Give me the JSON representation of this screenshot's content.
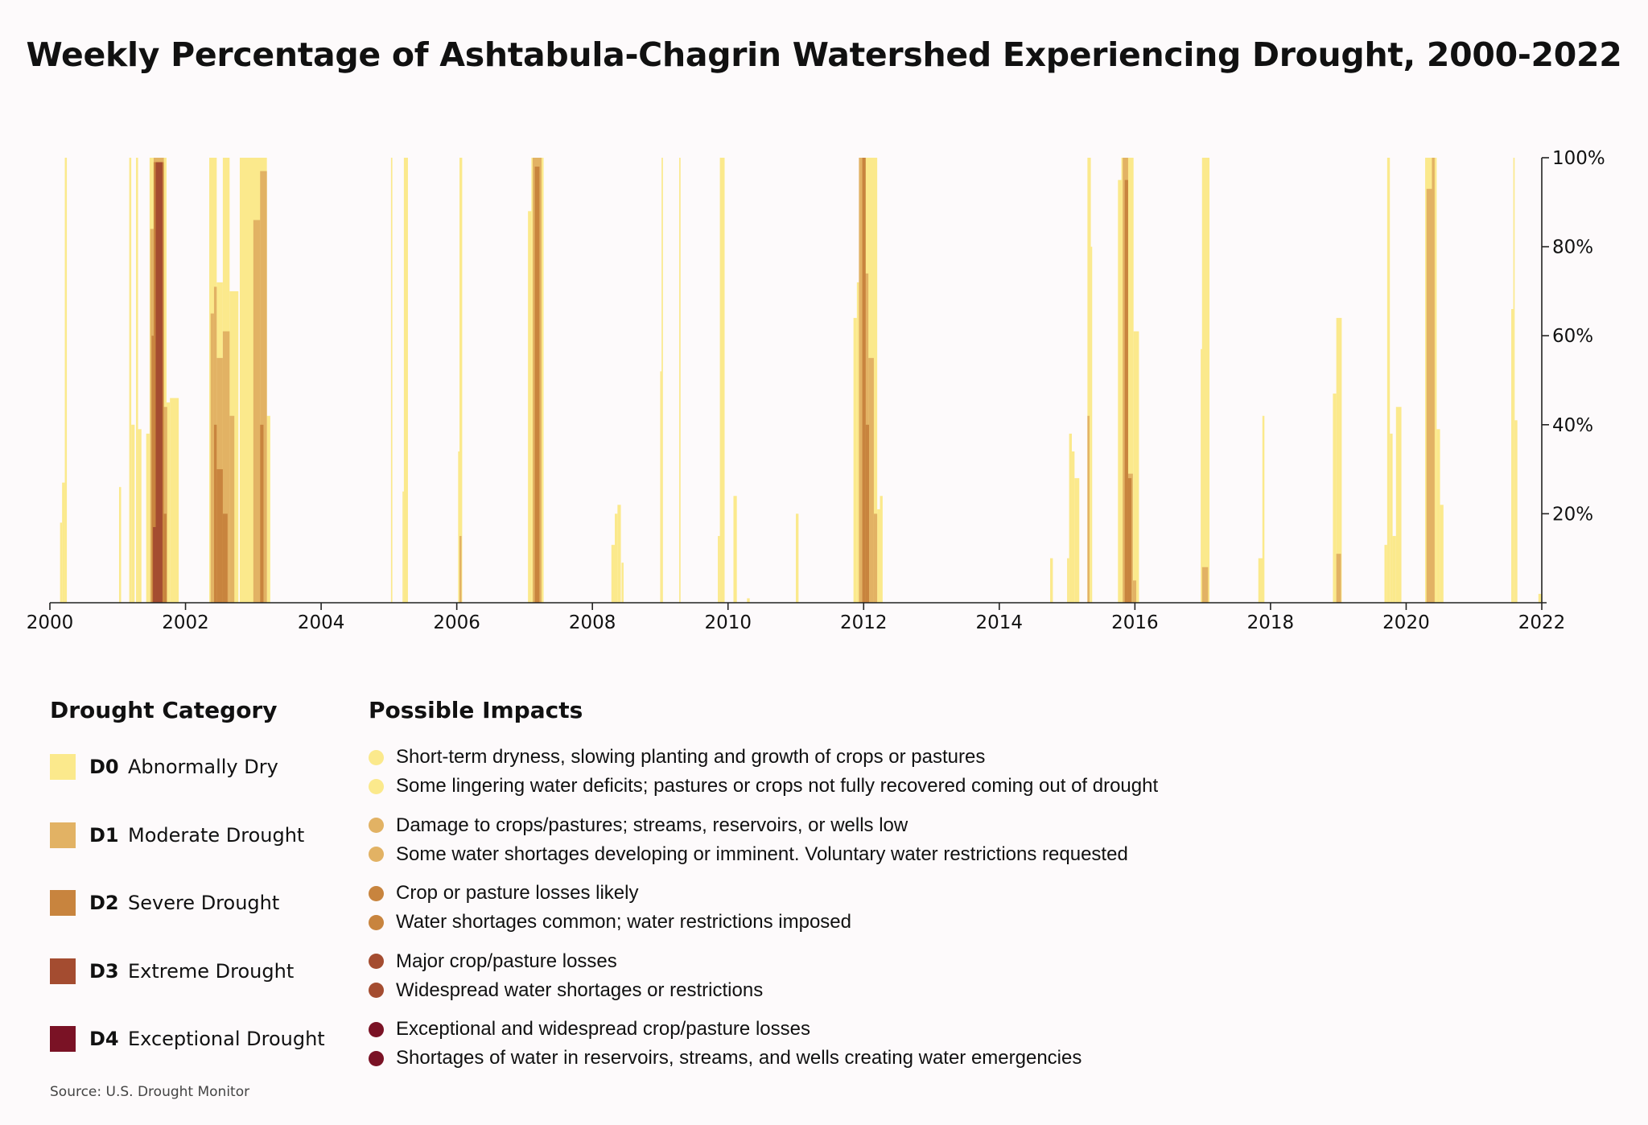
{
  "chart_data": {
    "type": "area",
    "title": "Weekly Percentage of Ashtabula-Chagrin Watershed Experiencing Drought, 2000-2022",
    "xlabel": "",
    "ylabel": "",
    "x_ticks": [
      "2000",
      "2002",
      "2004",
      "2006",
      "2008",
      "2010",
      "2012",
      "2014",
      "2016",
      "2018",
      "2020",
      "2022"
    ],
    "y_ticks": [
      "20%",
      "40%",
      "60%",
      "80%",
      "100%"
    ],
    "xlim": [
      2000,
      2022
    ],
    "ylim": [
      0,
      100
    ],
    "y_axis_position": "right",
    "grid": false,
    "colors": {
      "D0": "#fbe98c",
      "D1": "#e2b264",
      "D2": "#c8843e",
      "D3": "#a44c30",
      "D4": "#7a1225"
    },
    "series": [
      {
        "name": "D0",
        "segments": [
          [
            2000.15,
            2000.18,
            18
          ],
          [
            2000.18,
            2000.22,
            27
          ],
          [
            2000.22,
            2000.25,
            100
          ],
          [
            2001.02,
            2001.05,
            26
          ],
          [
            2001.17,
            2001.2,
            100
          ],
          [
            2001.2,
            2001.25,
            40
          ],
          [
            2001.27,
            2001.3,
            100
          ],
          [
            2001.3,
            2001.35,
            39
          ],
          [
            2001.42,
            2001.47,
            38
          ],
          [
            2001.47,
            2001.53,
            100
          ],
          [
            2001.53,
            2001.72,
            100
          ],
          [
            2001.72,
            2001.77,
            45
          ],
          [
            2001.77,
            2001.9,
            46
          ],
          [
            2002.35,
            2002.46,
            100
          ],
          [
            2002.46,
            2002.55,
            72
          ],
          [
            2002.55,
            2002.65,
            100
          ],
          [
            2002.65,
            2002.78,
            70
          ],
          [
            2002.8,
            2003.2,
            100
          ],
          [
            2003.2,
            2003.25,
            42
          ],
          [
            2005.03,
            2005.05,
            100
          ],
          [
            2005.2,
            2005.22,
            25
          ],
          [
            2005.22,
            2005.28,
            100
          ],
          [
            2006.02,
            2006.04,
            34
          ],
          [
            2006.04,
            2006.08,
            100
          ],
          [
            2007.05,
            2007.1,
            88
          ],
          [
            2007.1,
            2007.28,
            100
          ],
          [
            2008.28,
            2008.33,
            13
          ],
          [
            2008.33,
            2008.37,
            20
          ],
          [
            2008.37,
            2008.42,
            22
          ],
          [
            2008.43,
            2008.46,
            9
          ],
          [
            2009.0,
            2009.02,
            52
          ],
          [
            2009.02,
            2009.04,
            100
          ],
          [
            2009.28,
            2009.3,
            100
          ],
          [
            2009.85,
            2009.88,
            15
          ],
          [
            2009.88,
            2009.95,
            100
          ],
          [
            2010.08,
            2010.13,
            24
          ],
          [
            2010.28,
            2010.32,
            1
          ],
          [
            2011.0,
            2011.04,
            20
          ],
          [
            2011.85,
            2011.9,
            64
          ],
          [
            2011.9,
            2011.95,
            72
          ],
          [
            2011.95,
            2012.2,
            100
          ],
          [
            2012.2,
            2012.24,
            21
          ],
          [
            2012.24,
            2012.28,
            24
          ],
          [
            2014.75,
            2014.79,
            10
          ],
          [
            2015.0,
            2015.03,
            10
          ],
          [
            2015.03,
            2015.07,
            38
          ],
          [
            2015.07,
            2015.11,
            34
          ],
          [
            2015.11,
            2015.18,
            28
          ],
          [
            2015.3,
            2015.35,
            100
          ],
          [
            2015.35,
            2015.37,
            80
          ],
          [
            2015.75,
            2015.8,
            95
          ],
          [
            2015.8,
            2015.98,
            100
          ],
          [
            2015.98,
            2016.06,
            61
          ],
          [
            2016.97,
            2017.0,
            57
          ],
          [
            2016.99,
            2017.1,
            100
          ],
          [
            2017.82,
            2017.9,
            10
          ],
          [
            2017.88,
            2017.91,
            42
          ],
          [
            2018.92,
            2018.97,
            47
          ],
          [
            2018.97,
            2019.05,
            64
          ],
          [
            2019.68,
            2019.72,
            13
          ],
          [
            2019.72,
            2019.76,
            100
          ],
          [
            2019.76,
            2019.8,
            38
          ],
          [
            2019.8,
            2019.85,
            15
          ],
          [
            2019.85,
            2019.93,
            44
          ],
          [
            2020.28,
            2020.45,
            100
          ],
          [
            2020.45,
            2020.5,
            39
          ],
          [
            2020.5,
            2020.55,
            22
          ],
          [
            2021.55,
            2021.58,
            66
          ],
          [
            2021.58,
            2021.6,
            100
          ],
          [
            2021.6,
            2021.64,
            41
          ],
          [
            2021.95,
            2022.0,
            2
          ]
        ]
      },
      {
        "name": "D1",
        "segments": [
          [
            2001.48,
            2001.53,
            84
          ],
          [
            2001.53,
            2001.68,
            100
          ],
          [
            2001.68,
            2001.73,
            44
          ],
          [
            2002.37,
            2002.42,
            65
          ],
          [
            2002.42,
            2002.46,
            71
          ],
          [
            2002.46,
            2002.55,
            55
          ],
          [
            2002.55,
            2002.65,
            61
          ],
          [
            2002.65,
            2002.72,
            42
          ],
          [
            2003.0,
            2003.1,
            86
          ],
          [
            2003.1,
            2003.2,
            97
          ],
          [
            2006.04,
            2006.07,
            15
          ],
          [
            2007.12,
            2007.25,
            100
          ],
          [
            2011.93,
            2012.0,
            100
          ],
          [
            2012.0,
            2012.07,
            74
          ],
          [
            2012.07,
            2012.15,
            55
          ],
          [
            2012.15,
            2012.2,
            20
          ],
          [
            2015.3,
            2015.33,
            42
          ],
          [
            2015.82,
            2015.9,
            100
          ],
          [
            2015.9,
            2015.97,
            29
          ],
          [
            2015.97,
            2016.02,
            5
          ],
          [
            2016.99,
            2017.08,
            8
          ],
          [
            2018.97,
            2019.04,
            11
          ],
          [
            2020.3,
            2020.38,
            93
          ],
          [
            2020.38,
            2020.42,
            100
          ]
        ]
      },
      {
        "name": "D2",
        "segments": [
          [
            2001.5,
            2001.53,
            60
          ],
          [
            2001.53,
            2001.68,
            99
          ],
          [
            2001.68,
            2001.72,
            20
          ],
          [
            2002.42,
            2002.46,
            40
          ],
          [
            2002.46,
            2002.55,
            30
          ],
          [
            2002.55,
            2002.62,
            20
          ],
          [
            2003.1,
            2003.15,
            40
          ],
          [
            2007.15,
            2007.22,
            98
          ],
          [
            2011.98,
            2012.03,
            100
          ],
          [
            2012.03,
            2012.08,
            40
          ],
          [
            2015.85,
            2015.9,
            95
          ],
          [
            2015.9,
            2015.95,
            28
          ]
        ]
      },
      {
        "name": "D3",
        "segments": [
          [
            2001.52,
            2001.56,
            17
          ],
          [
            2001.56,
            2001.66,
            99
          ]
        ]
      },
      {
        "name": "D4",
        "segments": []
      }
    ]
  },
  "legend": {
    "categories_heading": "Drought Category",
    "impacts_heading": "Possible Impacts",
    "categories": [
      {
        "code": "D0",
        "label": "Abnormally Dry",
        "color": "#fbe98c"
      },
      {
        "code": "D1",
        "label": "Moderate Drought",
        "color": "#e2b264"
      },
      {
        "code": "D2",
        "label": "Severe Drought",
        "color": "#c8843e"
      },
      {
        "code": "D3",
        "label": "Extreme Drought",
        "color": "#a44c30"
      },
      {
        "code": "D4",
        "label": "Exceptional Drought",
        "color": "#7a1225"
      }
    ],
    "impacts": [
      {
        "color": "#fbe98c",
        "items": [
          "Short-term dryness, slowing planting and growth of crops or pastures",
          "Some lingering water deficits; pastures or crops not fully recovered coming out of drought"
        ]
      },
      {
        "color": "#e2b264",
        "items": [
          "Damage to crops/pastures; streams, reservoirs, or wells low",
          "Some water shortages developing or imminent. Voluntary water restrictions requested"
        ]
      },
      {
        "color": "#c8843e",
        "items": [
          "Crop or pasture losses likely",
          "Water shortages common; water restrictions imposed"
        ]
      },
      {
        "color": "#a44c30",
        "items": [
          "Major crop/pasture losses",
          "Widespread water shortages or restrictions"
        ]
      },
      {
        "color": "#7a1225",
        "items": [
          "Exceptional and widespread crop/pasture losses",
          "Shortages of water in reservoirs, streams, and wells creating water emergencies"
        ]
      }
    ]
  },
  "source": "Source: U.S. Drought Monitor"
}
